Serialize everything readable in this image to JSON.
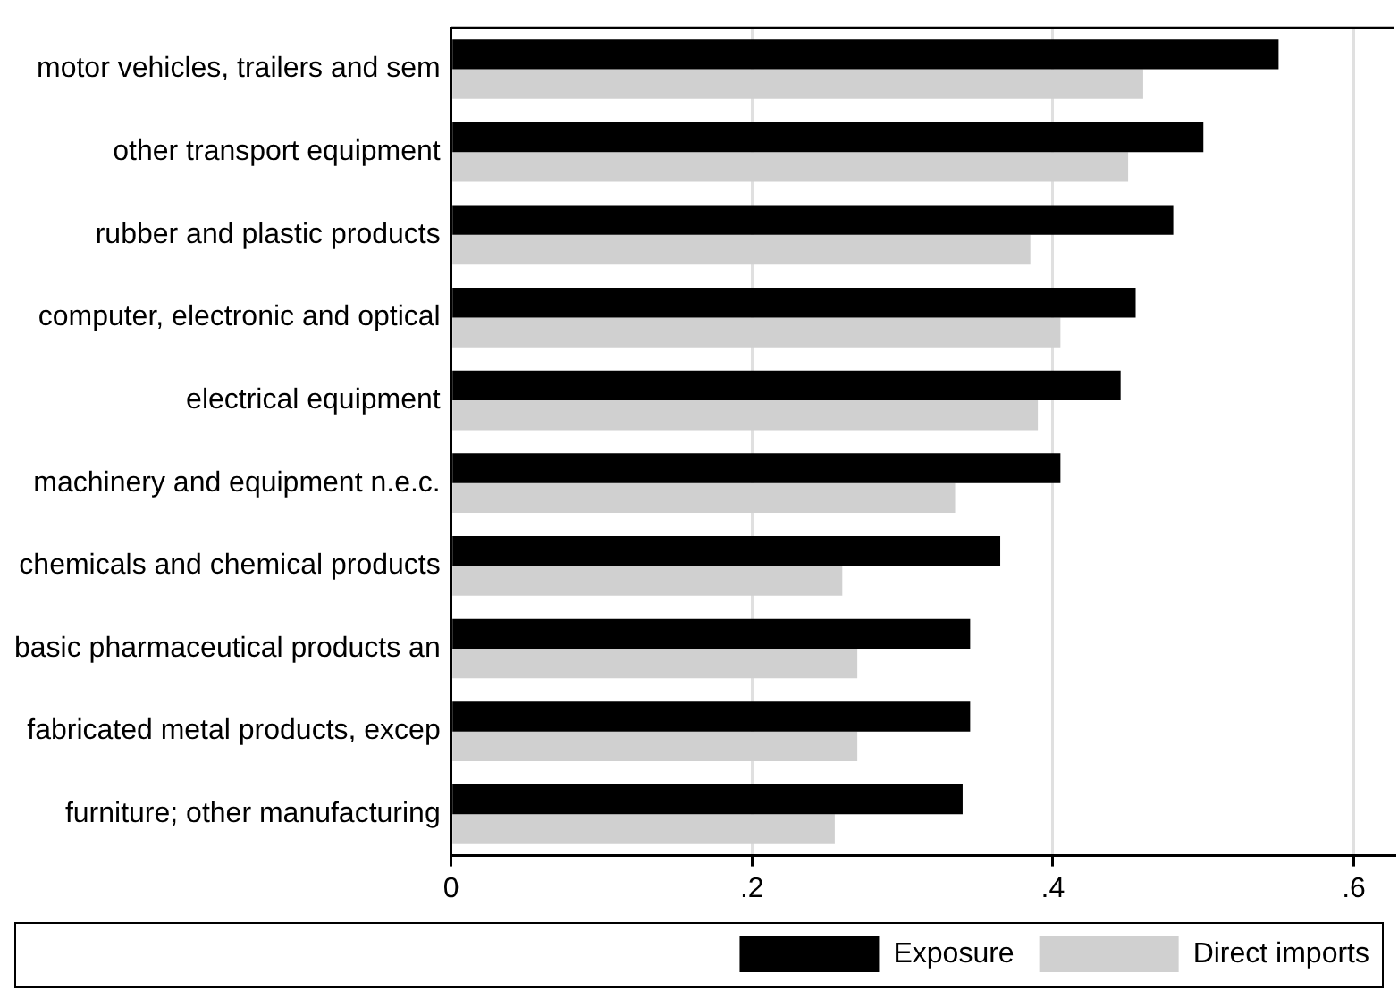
{
  "chart_data": {
    "type": "bar",
    "orientation": "horizontal",
    "categories": [
      "motor vehicles, trailers and sem",
      "other transport equipment",
      "rubber and plastic products",
      "computer, electronic and optical",
      "electrical equipment",
      "machinery and equipment n.e.c.",
      "chemicals and chemical products",
      "basic pharmaceutical products an",
      "fabricated metal products, excep",
      "furniture; other manufacturing"
    ],
    "series": [
      {
        "name": "Exposure",
        "color": "#000000",
        "values": [
          0.55,
          0.5,
          0.48,
          0.455,
          0.445,
          0.405,
          0.365,
          0.345,
          0.345,
          0.34
        ]
      },
      {
        "name": "Direct imports",
        "color": "#d0d0d0",
        "values": [
          0.46,
          0.45,
          0.385,
          0.405,
          0.39,
          0.335,
          0.26,
          0.27,
          0.27,
          0.255
        ]
      }
    ],
    "xlim": [
      0,
      0.627
    ],
    "xticks": [
      {
        "value": 0,
        "label": "0"
      },
      {
        "value": 0.2,
        "label": ".2"
      },
      {
        "value": 0.4,
        "label": ".4"
      },
      {
        "value": 0.6,
        "label": ".6"
      }
    ],
    "grid": "x",
    "legend": "bottom"
  }
}
